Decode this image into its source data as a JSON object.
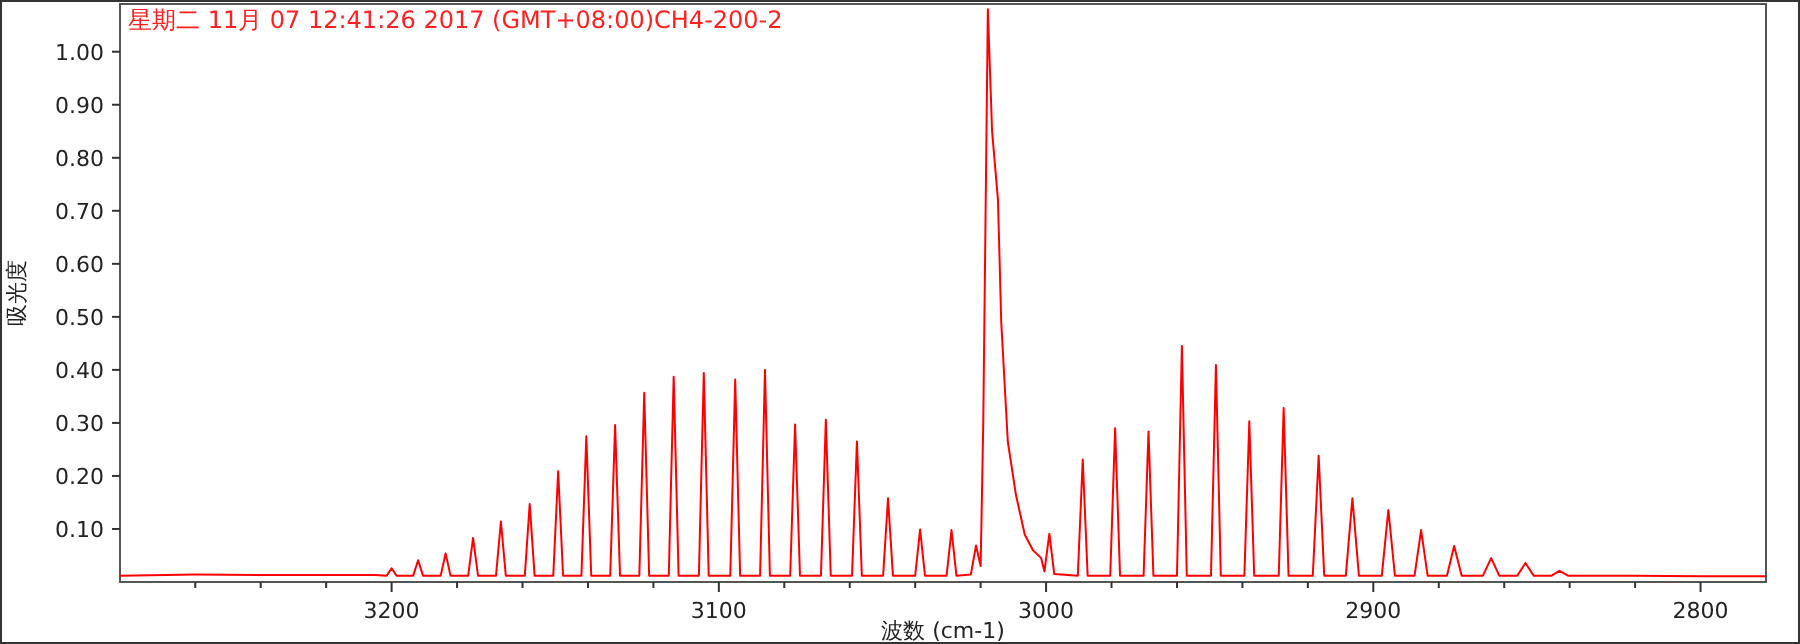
{
  "chart_data": {
    "type": "line",
    "title": "星期二 11月 07 12:41:26 2017 (GMT+08:00)CH4-200-2",
    "xlabel": "波数 (cm-1)",
    "ylabel": "吸光度",
    "xlim": [
      3283,
      2780
    ],
    "ylim": [
      0,
      1.09
    ],
    "xticks": [
      {
        "value": 3260,
        "label": null
      },
      {
        "value": 3240,
        "label": null
      },
      {
        "value": 3220,
        "label": null
      },
      3200,
      {
        "value": 3180,
        "label": null
      },
      {
        "value": 3160,
        "label": null
      },
      {
        "value": 3140,
        "label": null
      },
      {
        "value": 3120,
        "label": null
      },
      3100,
      {
        "value": 3080,
        "label": null
      },
      {
        "value": 3060,
        "label": null
      },
      {
        "value": 3040,
        "label": null
      },
      {
        "value": 3020,
        "label": null
      },
      3000,
      {
        "value": 2980,
        "label": null
      },
      {
        "value": 2960,
        "label": null
      },
      {
        "value": 2940,
        "label": null
      },
      {
        "value": 2920,
        "label": null
      },
      2900,
      {
        "value": 2880,
        "label": null
      },
      {
        "value": 2860,
        "label": null
      },
      {
        "value": 2840,
        "label": null
      },
      {
        "value": 2820,
        "label": null
      },
      2800
    ],
    "yticks": [
      {
        "value": 0.1,
        "label": "0.10"
      },
      {
        "value": 0.2,
        "label": "0.20"
      },
      {
        "value": 0.3,
        "label": "0.30"
      },
      {
        "value": 0.4,
        "label": "0.40"
      },
      {
        "value": 0.5,
        "label": "0.50"
      },
      {
        "value": 0.6,
        "label": "0.60"
      },
      {
        "value": 0.7,
        "label": "0.70"
      },
      {
        "value": 0.8,
        "label": "0.80"
      },
      {
        "value": 0.9,
        "label": "0.90"
      },
      {
        "value": 1.0,
        "label": "1.00"
      }
    ],
    "series": [
      {
        "color": "#ff0000",
        "x": [
          3283,
          3260,
          3240,
          3220,
          3205,
          3201.5,
          3200,
          3198.5,
          3193.4,
          3191.9,
          3190.4,
          3185,
          3183.5,
          3182,
          3176.6,
          3175.1,
          3173.6,
          3168.1,
          3166.6,
          3165.1,
          3159.3,
          3157.8,
          3156.3,
          3150.6,
          3149.1,
          3147.6,
          3142,
          3140.5,
          3139,
          3133.2,
          3131.7,
          3130.2,
          3124.3,
          3122.8,
          3121.3,
          3115.3,
          3113.8,
          3112.3,
          3106.1,
          3104.6,
          3103.1,
          3096.5,
          3095.0,
          3093.5,
          3087.4,
          3085.9,
          3084.4,
          3078.2,
          3076.7,
          3075.2,
          3068.8,
          3067.3,
          3065.8,
          3059.3,
          3057.8,
          3056.3,
          3049.8,
          3048.3,
          3046.8,
          3040,
          3038.5,
          3037,
          3030.4,
          3028.9,
          3027.4,
          3023,
          3021.4,
          3020,
          3019.2,
          3017.8,
          3016.5,
          3014.7,
          3013.7,
          3011.7,
          3009.2,
          3006.5,
          3004,
          3001.5,
          3000.5,
          2999.0,
          2997.5,
          2990.3,
          2988.8,
          2987.3,
          2980.4,
          2978.9,
          2977.4,
          2970.2,
          2968.7,
          2967.2,
          2960,
          2958.5,
          2957,
          2949.6,
          2948.1,
          2946.6,
          2939.4,
          2937.9,
          2936.4,
          2928.9,
          2927.4,
          2925.9,
          2918.5,
          2916.7,
          2915,
          2908.4,
          2906.4,
          2904.4,
          2897.4,
          2895.4,
          2893.4,
          2887.4,
          2885.4,
          2883.4,
          2877.5,
          2875.3,
          2873,
          2866.5,
          2864,
          2861.5,
          2856,
          2853.5,
          2851,
          2845.5,
          2843.1,
          2840.5,
          2820,
          2800,
          2780
        ],
        "values": [
          0.012,
          0.014,
          0.013,
          0.013,
          0.013,
          0.012,
          0.026,
          0.012,
          0.012,
          0.041,
          0.012,
          0.012,
          0.054,
          0.012,
          0.012,
          0.083,
          0.012,
          0.012,
          0.114,
          0.012,
          0.012,
          0.147,
          0.012,
          0.012,
          0.209,
          0.012,
          0.012,
          0.275,
          0.012,
          0.012,
          0.296,
          0.012,
          0.012,
          0.357,
          0.012,
          0.012,
          0.387,
          0.012,
          0.012,
          0.394,
          0.012,
          0.012,
          0.382,
          0.012,
          0.012,
          0.4,
          0.012,
          0.012,
          0.297,
          0.012,
          0.012,
          0.306,
          0.012,
          0.012,
          0.265,
          0.012,
          0.012,
          0.158,
          0.012,
          0.012,
          0.099,
          0.012,
          0.012,
          0.098,
          0.012,
          0.014,
          0.069,
          0.03,
          0.3,
          1.08,
          0.85,
          0.72,
          0.49,
          0.265,
          0.164,
          0.089,
          0.06,
          0.045,
          0.02,
          0.091,
          0.015,
          0.012,
          0.231,
          0.012,
          0.012,
          0.29,
          0.012,
          0.012,
          0.284,
          0.012,
          0.012,
          0.445,
          0.012,
          0.012,
          0.409,
          0.012,
          0.012,
          0.303,
          0.012,
          0.012,
          0.328,
          0.012,
          0.012,
          0.238,
          0.012,
          0.012,
          0.158,
          0.012,
          0.012,
          0.136,
          0.012,
          0.012,
          0.098,
          0.012,
          0.012,
          0.068,
          0.012,
          0.012,
          0.045,
          0.012,
          0.012,
          0.036,
          0.012,
          0.012,
          0.021,
          0.012,
          0.012,
          0.011,
          0.011
        ]
      }
    ]
  }
}
